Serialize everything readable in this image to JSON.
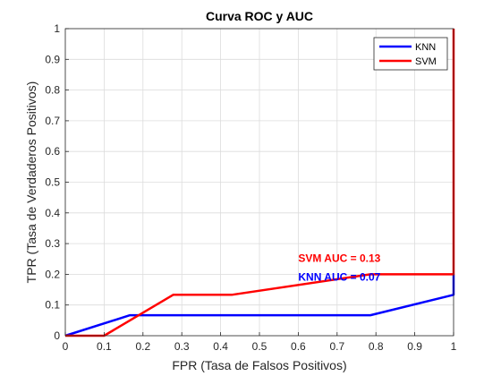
{
  "chart_data": {
    "type": "line",
    "title": "Curva ROC y AUC",
    "xlabel": "FPR (Tasa de Falsos Positivos)",
    "ylabel": "TPR (Tasa de Verdaderos Positivos)",
    "xlim": [
      0,
      1
    ],
    "ylim": [
      0,
      1
    ],
    "xticks": [
      "0",
      "0.1",
      "0.2",
      "0.3",
      "0.4",
      "0.5",
      "0.6",
      "0.7",
      "0.8",
      "0.9",
      "1"
    ],
    "yticks": [
      "0",
      "0.1",
      "0.2",
      "0.3",
      "0.4",
      "0.5",
      "0.6",
      "0.7",
      "0.8",
      "0.9",
      "1"
    ],
    "grid": true,
    "legend_position": "top-right",
    "series": [
      {
        "name": "KNN",
        "color": "#0000ff",
        "x": [
          0,
          0.1667,
          0.7857,
          1,
          1
        ],
        "y": [
          0,
          0.0667,
          0.0667,
          0.1333,
          0.2
        ]
      },
      {
        "name": "SVM",
        "color": "#ff0000",
        "x": [
          0,
          0.1,
          0.2778,
          0.4286,
          0.7857,
          1,
          1
        ],
        "y": [
          0,
          0,
          0.1333,
          0.1333,
          0.2,
          0.2,
          1
        ]
      }
    ],
    "annotations": [
      {
        "text": "SVM AUC = 0.13",
        "x": 0.6,
        "y": 0.24,
        "color": "#ff0000"
      },
      {
        "text": "KNN AUC = 0.07",
        "x": 0.6,
        "y": 0.18,
        "color": "#0000ff"
      }
    ]
  }
}
